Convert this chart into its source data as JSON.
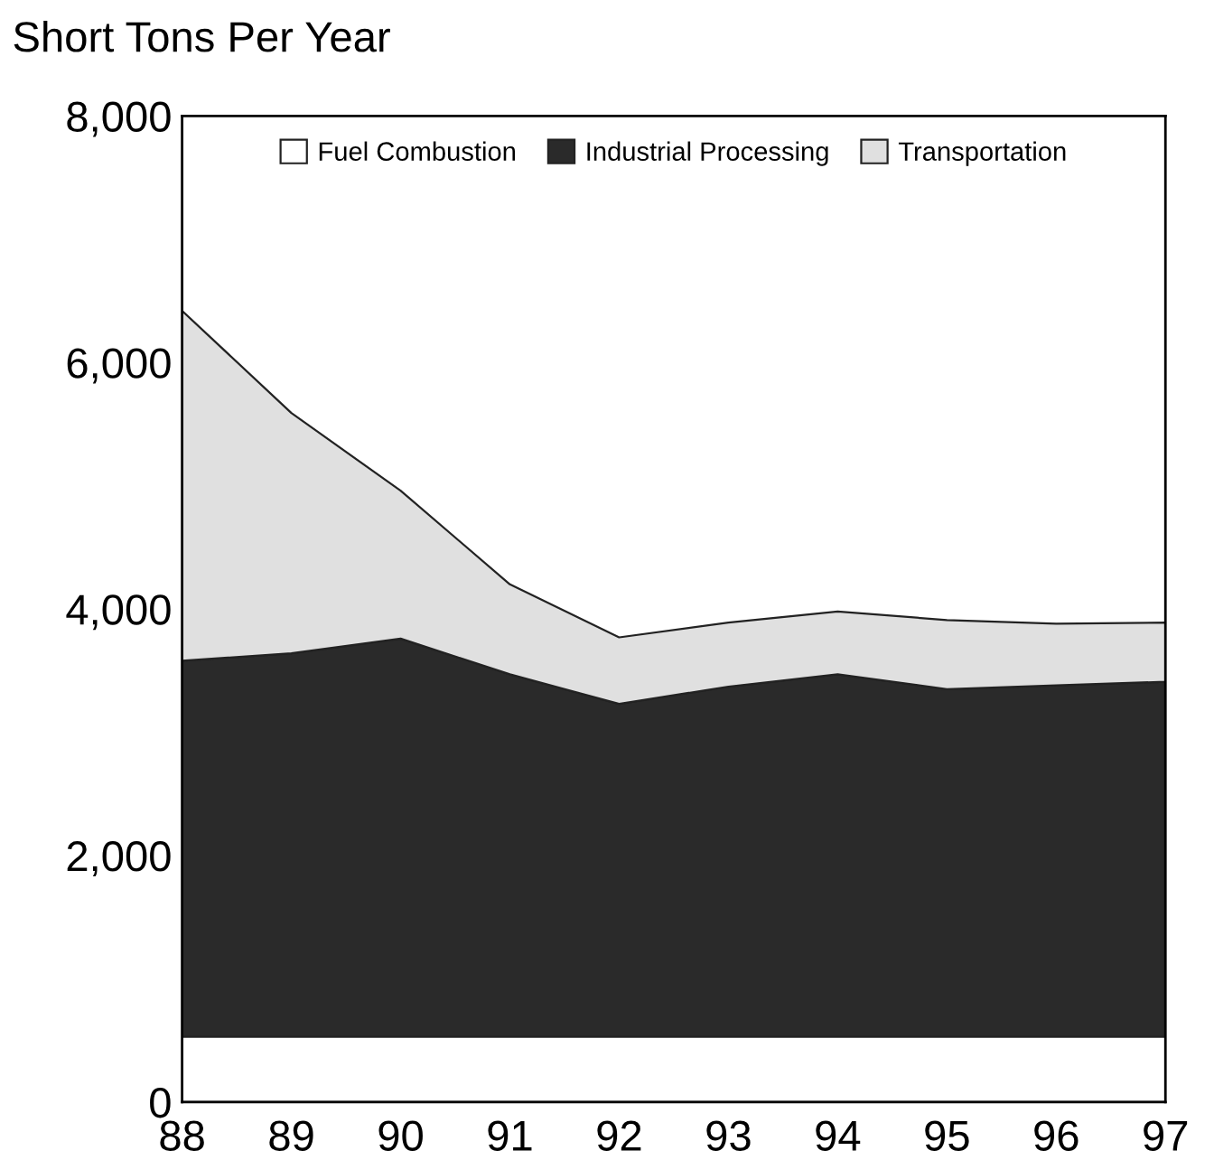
{
  "chart_data": {
    "type": "area",
    "stacked": true,
    "ylabel": "Short Tons Per Year",
    "x": [
      1988,
      1989,
      1990,
      1991,
      1992,
      1993,
      1994,
      1995,
      1996,
      1997
    ],
    "series": [
      {
        "name": "Fuel Combustion",
        "color": "#ffffff",
        "values": [
          530,
          530,
          530,
          530,
          530,
          530,
          530,
          530,
          530,
          530
        ]
      },
      {
        "name": "Industrial Processing",
        "color": "#2a2a2a",
        "values": [
          3050,
          3110,
          3230,
          2940,
          2700,
          2840,
          2940,
          2820,
          2850,
          2880
        ]
      },
      {
        "name": "Transportation",
        "color": "#e0e0e0",
        "values": [
          2840,
          1950,
          1200,
          730,
          540,
          520,
          510,
          560,
          500,
          480
        ]
      }
    ],
    "xlim": [
      1988,
      1997
    ],
    "xticks": [
      {
        "value": 1988,
        "label": "88"
      },
      {
        "value": 1989,
        "label": "89"
      },
      {
        "value": 1990,
        "label": "90"
      },
      {
        "value": 1991,
        "label": "91"
      },
      {
        "value": 1992,
        "label": "92"
      },
      {
        "value": 1993,
        "label": "93"
      },
      {
        "value": 1994,
        "label": "94"
      },
      {
        "value": 1995,
        "label": "95"
      },
      {
        "value": 1996,
        "label": "96"
      },
      {
        "value": 1997,
        "label": "97"
      }
    ],
    "ylim": [
      0,
      8000
    ],
    "yticks": [
      0,
      {
        "value": 2000,
        "label": "2,000"
      },
      {
        "value": 4000,
        "label": "4,000"
      },
      {
        "value": 6000,
        "label": "6,000"
      },
      {
        "value": 8000,
        "label": "8,000"
      }
    ],
    "legend": "top",
    "grid": false
  }
}
